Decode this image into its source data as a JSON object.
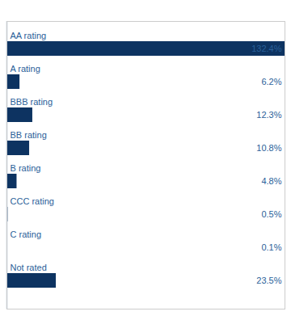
{
  "chart_data": {
    "type": "bar",
    "orientation": "horizontal",
    "categories": [
      "AA rating",
      "A rating",
      "BBB rating",
      "BB rating",
      "B rating",
      "CCC rating",
      "C rating",
      "Not rated"
    ],
    "values": [
      132.4,
      6.2,
      12.3,
      10.8,
      4.8,
      0.5,
      0.1,
      23.5
    ],
    "value_labels": [
      "132.4%",
      "6.2%",
      "12.3%",
      "10.8%",
      "4.8%",
      "0.5%",
      "0.1%",
      "23.5%"
    ],
    "data_labels": true,
    "color": "#0d3361",
    "xlim": [
      0,
      132.4
    ],
    "xticks": [],
    "tick_labels": false,
    "grid": false
  }
}
